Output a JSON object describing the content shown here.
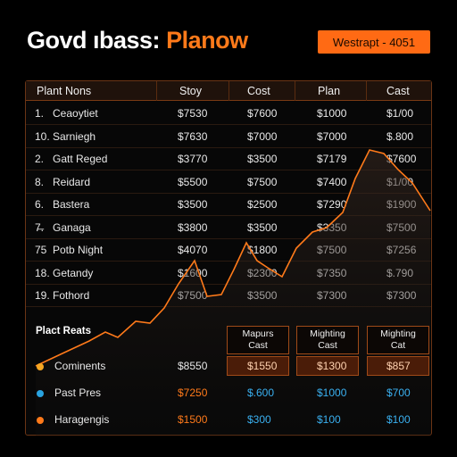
{
  "header": {
    "title_main": "Govd ıbass:",
    "title_accent": "Planow",
    "badge": "Westrapt - 4051"
  },
  "table": {
    "columns": [
      "Plant Nons",
      "Stoy",
      "Cost",
      "Plan",
      "Cast"
    ],
    "rows": [
      {
        "num": "1.",
        "name": "Ceaoytiet",
        "c1": "$7530",
        "c2": "$7600",
        "c3": "$1000",
        "c4": "$1/00"
      },
      {
        "num": "10.",
        "name": "Sarniegh",
        "c1": "$7630",
        "c2": "$7000",
        "c3": "$7000",
        "c4": "$.800"
      },
      {
        "num": "2.",
        "name": "Gatt Reged",
        "c1": "$3770",
        "c2": "$3500",
        "c3": "$7179",
        "c4": "$7600"
      },
      {
        "num": "8.",
        "name": "Reidard",
        "c1": "$5500",
        "c2": "$7500",
        "c3": "$7400",
        "c4": "$1/00"
      },
      {
        "num": "6.",
        "name": "Bastera",
        "c1": "$3500",
        "c2": "$2500",
        "c3": "$7290",
        "c4": "$1900"
      },
      {
        "num": "7̶.",
        "name": "Ganaga",
        "c1": "$3800",
        "c2": "$3500",
        "c3": "$3350",
        "c4": "$7500"
      },
      {
        "num": "75",
        "name": "Potb Night",
        "c1": "$4070",
        "c2": "$1800",
        "c3": "$7500",
        "c4": "$7256"
      },
      {
        "num": "18.",
        "name": "Getandy",
        "c1": "$1600",
        "c2": "$2300",
        "c3": "$7350",
        "c4": "$.790"
      },
      {
        "num": "19.",
        "name": "Fothord",
        "c1": "$7500",
        "c2": "$3500",
        "c3": "$7300",
        "c4": "$7300"
      }
    ]
  },
  "bottom": {
    "section_label": "Plact Reats",
    "mini_headers": [
      {
        "line1": "Mapurs",
        "line2": "Cast"
      },
      {
        "line1": "Mighting",
        "line2": "Cast"
      },
      {
        "line1": "Mighting",
        "line2": "Cat"
      }
    ],
    "rows": [
      {
        "label": "Cominents",
        "dot_color": "#f5a623",
        "c1": "$8550",
        "c2": "$1550",
        "c3": "$1300",
        "c4": "$857",
        "c1_color": "#e8e8e8",
        "rest_color": "#ffd2b0"
      },
      {
        "label": "Past Pres",
        "dot_color": "#29a3e0",
        "c1": "$7250",
        "c2": "$.600",
        "c3": "$1000",
        "c4": "$700",
        "c1_color": "#ff7a1a",
        "rest_color": "#3ab0f0"
      },
      {
        "label": "Haragengis",
        "dot_color": "#ff7a1a",
        "c1": "$1500",
        "c2": "$300",
        "c3": "$100",
        "c4": "$100",
        "c1_color": "#ff7a1a",
        "rest_color": "#3ab0f0"
      }
    ]
  },
  "colors": {
    "accent": "#ff7a1a",
    "blue": "#3ab0f0"
  }
}
